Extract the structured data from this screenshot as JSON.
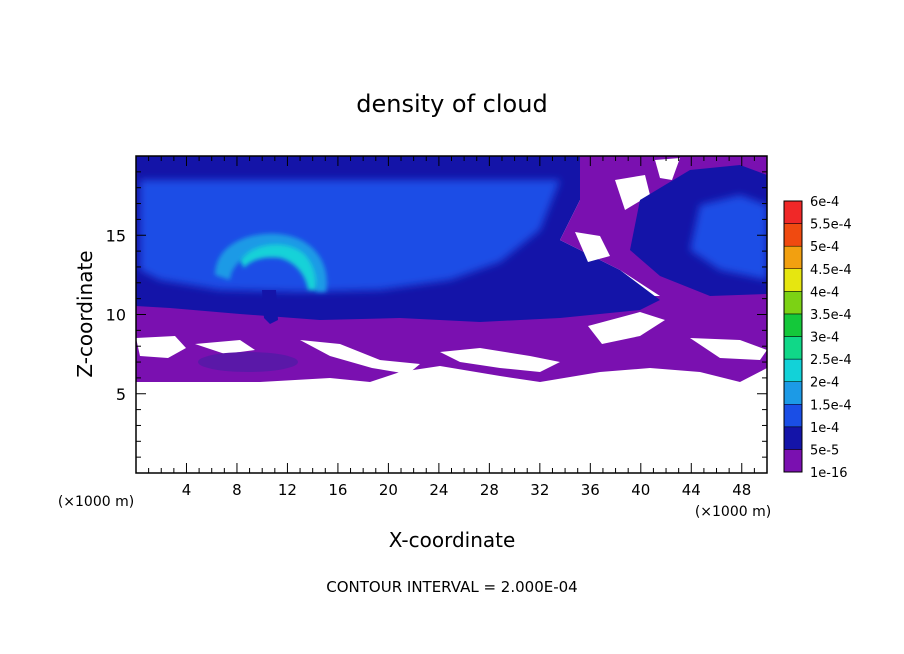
{
  "chart_data": {
    "type": "heatmap",
    "title": "density of cloud",
    "xlabel": "X-coordinate",
    "ylabel": "Z-coordinate",
    "x_unit": "(×1000 m)",
    "z_unit": "(×1000 m)",
    "footer": "CONTOUR INTERVAL = 2.000E-04",
    "xlim": [
      0,
      50
    ],
    "ylim": [
      0,
      20
    ],
    "x_ticks": [
      4,
      8,
      12,
      16,
      20,
      24,
      28,
      32,
      36,
      40,
      44,
      48
    ],
    "y_ticks": [
      5,
      10,
      15
    ],
    "colorbar": {
      "levels": [
        {
          "label": "1e-16",
          "color": "#7a10b0"
        },
        {
          "label": "5e-5",
          "color": "#1414a8"
        },
        {
          "label": "1e-4",
          "color": "#1a4ee6"
        },
        {
          "label": "1.5e-4",
          "color": "#1c9ae6"
        },
        {
          "label": "2e-4",
          "color": "#12d2d8"
        },
        {
          "label": "2.5e-4",
          "color": "#10d888"
        },
        {
          "label": "3e-4",
          "color": "#14c83a"
        },
        {
          "label": "3.5e-4",
          "color": "#7cd214"
        },
        {
          "label": "4e-4",
          "color": "#e6e610"
        },
        {
          "label": "4.5e-4",
          "color": "#f2a010"
        },
        {
          "label": "5e-4",
          "color": "#f04a10"
        },
        {
          "label": "5.5e-4",
          "color": "#f02828"
        },
        {
          "label": "6e-4",
          "color": "#f08888"
        }
      ]
    },
    "features": [
      {
        "kind": "cloud-base-layer",
        "z_range": [
          6,
          11
        ]
      },
      {
        "kind": "upper-cloud-deck",
        "z_range": [
          11,
          19.5
        ]
      },
      {
        "kind": "arc-core",
        "x_center": 10.5,
        "z_center": 12.5,
        "value": 0.00016
      }
    ]
  }
}
